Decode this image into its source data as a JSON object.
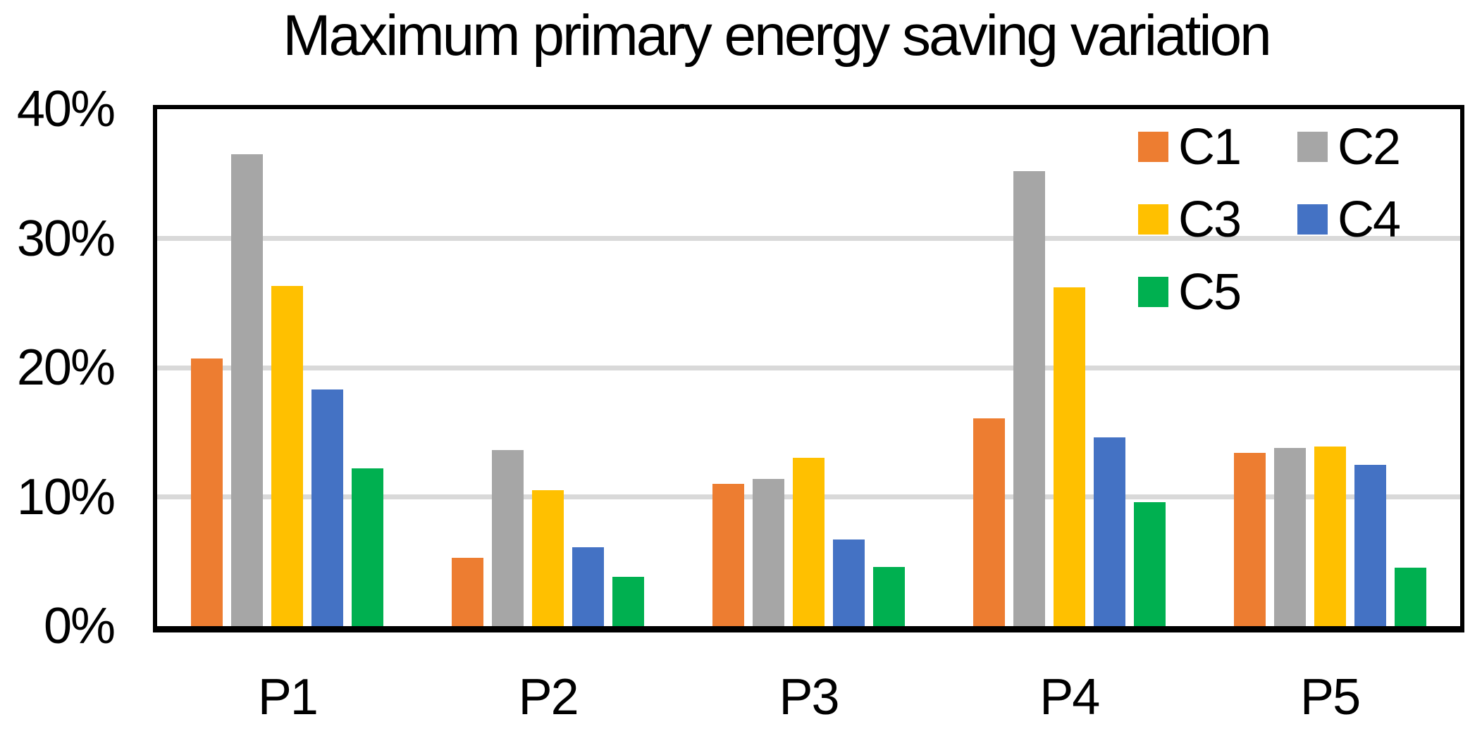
{
  "title": "Maximum primary energy saving variation",
  "colors": {
    "background": "#FFFFFF",
    "axis": "#000000",
    "text": "#000000",
    "gridline": "#D9D9D9"
  },
  "chart_data": {
    "type": "bar",
    "title": "Maximum primary energy saving variation",
    "categories": [
      "P1",
      "P2",
      "P3",
      "P4",
      "P5"
    ],
    "series": [
      {
        "name": "C1",
        "color": "#ED7D31",
        "values": [
          20.7,
          5.3,
          11.0,
          16.1,
          13.4
        ]
      },
      {
        "name": "C2",
        "color": "#A6A6A6",
        "values": [
          36.5,
          13.6,
          11.4,
          35.2,
          13.8
        ]
      },
      {
        "name": "C3",
        "color": "#FFC000",
        "values": [
          26.3,
          10.5,
          13.0,
          26.2,
          13.9
        ]
      },
      {
        "name": "C4",
        "color": "#4472C4",
        "values": [
          18.3,
          6.1,
          6.7,
          14.6,
          12.5
        ]
      },
      {
        "name": "C5",
        "color": "#00B050",
        "values": [
          12.2,
          3.8,
          4.6,
          9.6,
          4.5
        ]
      }
    ],
    "ylim": [
      0,
      40
    ],
    "yticks": [
      {
        "value": 40,
        "label": "40%"
      },
      {
        "value": 30,
        "label": "30%"
      },
      {
        "value": 20,
        "label": "20%"
      },
      {
        "value": 10,
        "label": "10%"
      },
      {
        "value": 0,
        "label": "0%"
      }
    ],
    "grid": true,
    "gridline_color": "#D9D9D9",
    "legend_position": "top-right-inside",
    "legend_columns": 2
  }
}
